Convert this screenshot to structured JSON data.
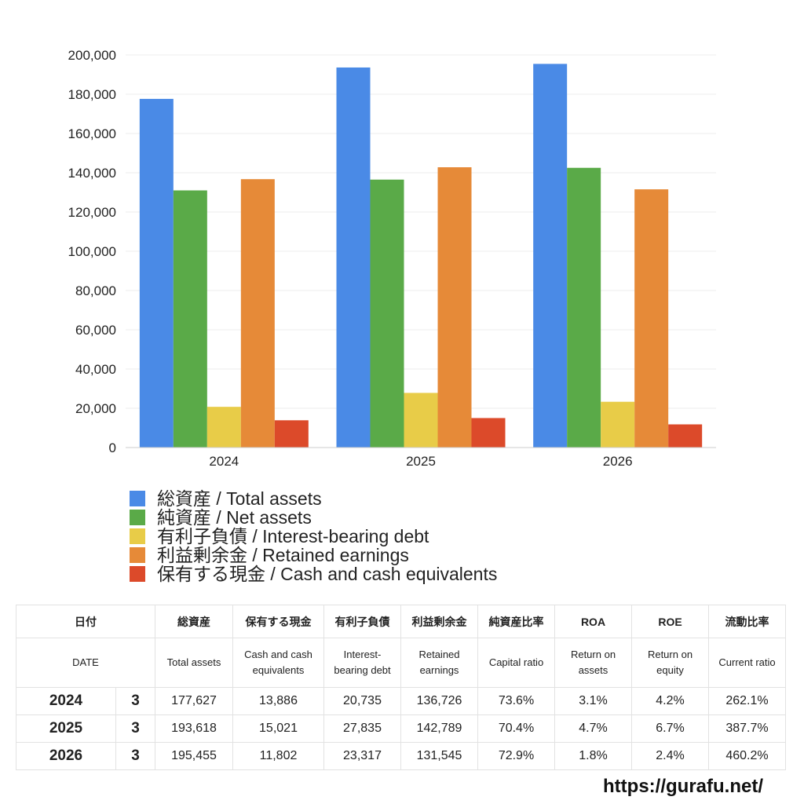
{
  "chart_data": {
    "type": "bar",
    "categories": [
      "2024",
      "2025",
      "2026"
    ],
    "series": [
      {
        "name": "総資産 / Total assets",
        "color": "#4a8ae6",
        "values": [
          177627,
          193618,
          195455
        ]
      },
      {
        "name": "純資産 / Net assets",
        "color": "#5aaa48",
        "values": [
          131000,
          136500,
          142500
        ]
      },
      {
        "name": "有利子負債 / Interest-bearing debt",
        "color": "#e8cc48",
        "values": [
          20735,
          27835,
          23317
        ]
      },
      {
        "name": "利益剰余金 / Retained earnings",
        "color": "#e68a38",
        "values": [
          136726,
          142789,
          131545
        ]
      },
      {
        "name": "保有する現金 /  Cash and cash equivalents",
        "color": "#dc4a2a",
        "values": [
          13886,
          15021,
          11802
        ]
      }
    ],
    "ylim": [
      0,
      200000
    ],
    "yticks": [
      0,
      {
        "value": 20000,
        "label": "20,000"
      },
      {
        "value": 40000,
        "label": "40,000"
      },
      {
        "value": 60000,
        "label": "60,000"
      },
      {
        "value": 80000,
        "label": "80,000"
      },
      {
        "value": 100000,
        "label": "100,000"
      },
      {
        "value": 120000,
        "label": "120,000"
      },
      {
        "value": 140000,
        "label": "140,000"
      },
      {
        "value": 160000,
        "label": "160,000"
      },
      {
        "value": 180000,
        "label": "180,000"
      },
      {
        "value": 200000,
        "label": "200,000"
      }
    ],
    "grid": true
  },
  "table": {
    "header1": [
      "日付",
      "総資産",
      "保有する現金",
      "有利子負債",
      "利益剰余金",
      "純資産比率",
      "ROA",
      "ROE",
      "流動比率"
    ],
    "header2": [
      "DATE",
      "Total assets",
      "Cash and cash equivalents",
      "Interest-bearing debt",
      "Retained earnings",
      "Capital ratio",
      "Return on assets",
      "Return on equity",
      "Current ratio"
    ],
    "rows": [
      [
        "2024",
        "3",
        "177,627",
        "13,886",
        "20,735",
        "136,726",
        "73.6%",
        "3.1%",
        "4.2%",
        "262.1%"
      ],
      [
        "2025",
        "3",
        "193,618",
        "15,021",
        "27,835",
        "142,789",
        "70.4%",
        "4.7%",
        "6.7%",
        "387.7%"
      ],
      [
        "2026",
        "3",
        "195,455",
        "11,802",
        "23,317",
        "131,545",
        "72.9%",
        "1.8%",
        "2.4%",
        "460.2%"
      ]
    ]
  },
  "footer": {
    "url": "https://gurafu.net/"
  }
}
